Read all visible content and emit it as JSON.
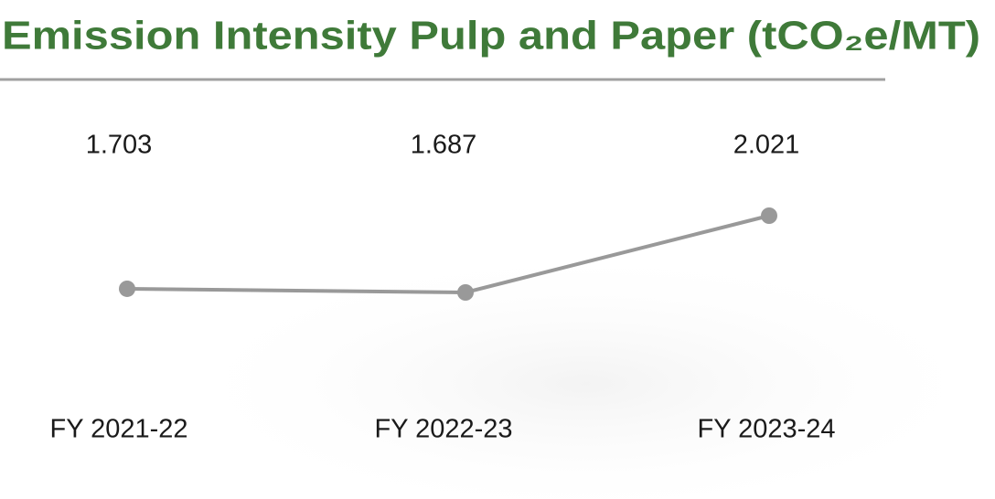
{
  "chart_data": {
    "type": "line",
    "title": "Emission Intensity Pulp and Paper (tCO₂e/MT)",
    "categories": [
      "FY 2021-22",
      "FY 2022-23",
      "FY 2023-24"
    ],
    "values": [
      1.703,
      1.687,
      2.021
    ],
    "color": "#999999"
  }
}
